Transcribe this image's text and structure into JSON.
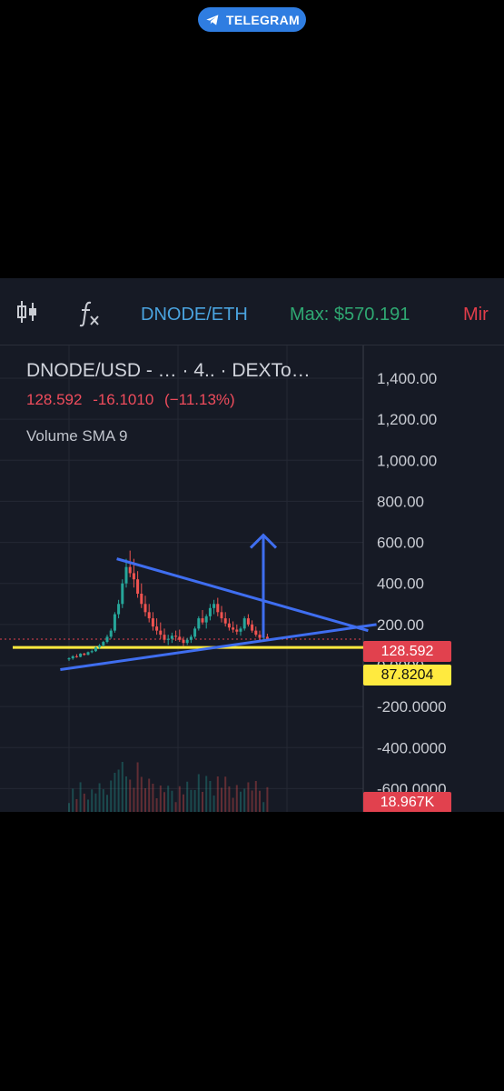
{
  "banner": {
    "label": "TELEGRAM",
    "icon": "telegram-icon",
    "color": "#2f7de1"
  },
  "toolbar": {
    "indicators_icon": "candles-icon",
    "function_icon": "fx-icon",
    "pair": "DNODE/ETH",
    "max": "Max: $570.191",
    "min": "Mir"
  },
  "legend": {
    "title": "DNODE/USD - …  · 4.. · DEXTo…",
    "price": "128.592",
    "change": "-16.1010",
    "change_pct": "(−11.13%)",
    "indicator": "Volume SMA 9"
  },
  "badges": {
    "price": "128.592",
    "support": "87.8204",
    "volume": "18.967K"
  },
  "colors": {
    "up": "#26a69a",
    "down": "#ef5350",
    "support": "#ffea3f",
    "drawing": "#3f6ef0",
    "background": "#161a25"
  },
  "chart_data": {
    "type": "candlestick",
    "y_ticks": [
      "1,400.00",
      "1,200.00",
      "1,000.00",
      "800.00",
      "600.00",
      "400.00",
      "200.00",
      "0.0000",
      "-200.0000",
      "-400.0000",
      "-600.0000"
    ],
    "y_values": [
      1400,
      1200,
      1000,
      800,
      600,
      400,
      200,
      0,
      -200,
      -400,
      -600
    ],
    "ylim": [
      -600,
      1500
    ],
    "grid": true,
    "support_level": 87.8204,
    "last_price": 128.592,
    "candles": [
      [
        30,
        40,
        22,
        35
      ],
      [
        35,
        50,
        28,
        45
      ],
      [
        45,
        55,
        38,
        42
      ],
      [
        42,
        60,
        40,
        58
      ],
      [
        58,
        62,
        48,
        52
      ],
      [
        52,
        68,
        50,
        65
      ],
      [
        65,
        78,
        60,
        70
      ],
      [
        70,
        92,
        66,
        88
      ],
      [
        88,
        105,
        80,
        98
      ],
      [
        98,
        120,
        92,
        115
      ],
      [
        115,
        150,
        108,
        140
      ],
      [
        140,
        180,
        130,
        170
      ],
      [
        170,
        260,
        160,
        250
      ],
      [
        250,
        320,
        230,
        300
      ],
      [
        300,
        420,
        280,
        400
      ],
      [
        400,
        520,
        380,
        480
      ],
      [
        480,
        560,
        430,
        450
      ],
      [
        450,
        520,
        380,
        420
      ],
      [
        420,
        460,
        330,
        350
      ],
      [
        350,
        400,
        280,
        300
      ],
      [
        300,
        340,
        240,
        260
      ],
      [
        260,
        300,
        210,
        230
      ],
      [
        230,
        260,
        170,
        190
      ],
      [
        190,
        230,
        150,
        170
      ],
      [
        170,
        210,
        130,
        150
      ],
      [
        150,
        180,
        110,
        125
      ],
      [
        125,
        150,
        100,
        130
      ],
      [
        130,
        160,
        110,
        145
      ],
      [
        145,
        170,
        120,
        140
      ],
      [
        140,
        175,
        115,
        125
      ],
      [
        125,
        140,
        95,
        110
      ],
      [
        110,
        135,
        100,
        125
      ],
      [
        125,
        150,
        110,
        140
      ],
      [
        140,
        190,
        130,
        180
      ],
      [
        180,
        240,
        170,
        230
      ],
      [
        230,
        270,
        200,
        210
      ],
      [
        210,
        250,
        180,
        240
      ],
      [
        240,
        300,
        220,
        280
      ],
      [
        280,
        320,
        250,
        300
      ],
      [
        300,
        330,
        240,
        260
      ],
      [
        260,
        290,
        210,
        230
      ],
      [
        230,
        260,
        190,
        205
      ],
      [
        205,
        230,
        170,
        185
      ],
      [
        185,
        215,
        160,
        175
      ],
      [
        175,
        200,
        150,
        165
      ],
      [
        165,
        190,
        145,
        180
      ],
      [
        180,
        240,
        170,
        230
      ],
      [
        230,
        250,
        190,
        200
      ],
      [
        200,
        220,
        160,
        170
      ],
      [
        170,
        190,
        140,
        150
      ],
      [
        150,
        170,
        120,
        135
      ],
      [
        135,
        160,
        115,
        140
      ],
      [
        140,
        155,
        120,
        128
      ]
    ],
    "volume_badge": "18.967K"
  },
  "annotations": {
    "triangle_upper": [
      [
        3,
        520
      ],
      [
        57,
        170
      ]
    ],
    "triangle_lower": [
      [
        -13,
        -20
      ],
      [
        58,
        200
      ]
    ],
    "breakout_arrow_target": 600
  }
}
